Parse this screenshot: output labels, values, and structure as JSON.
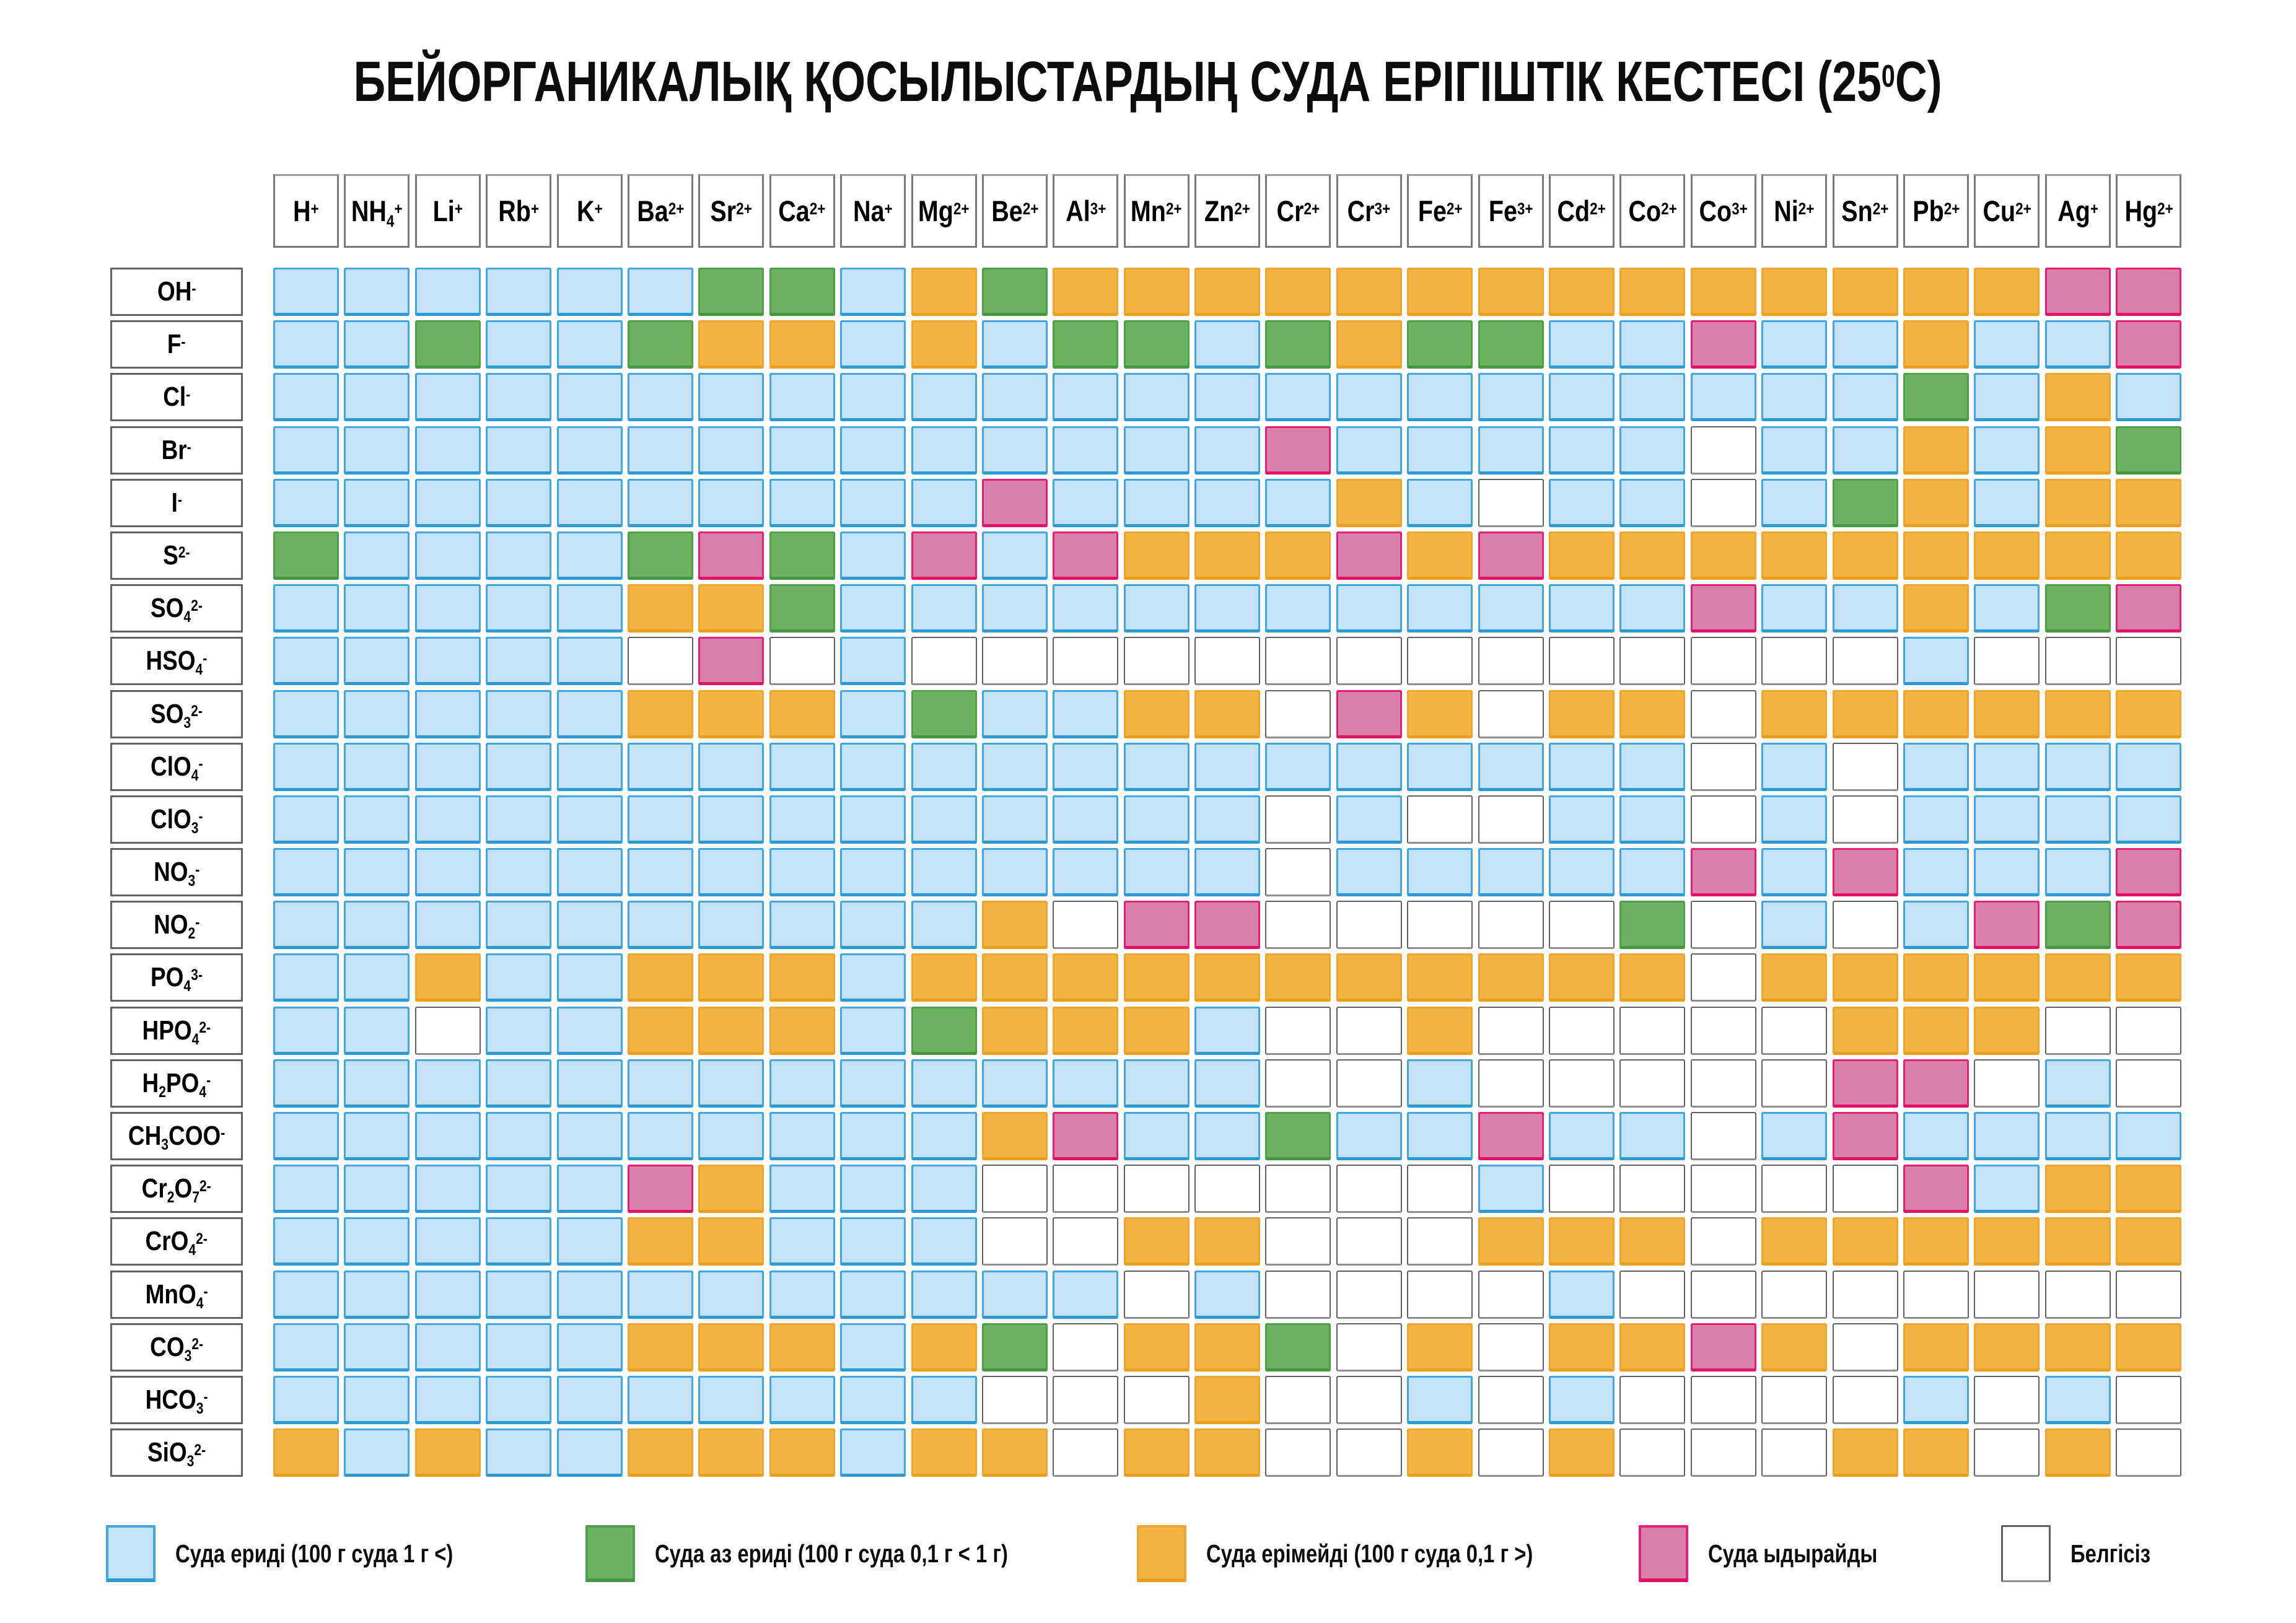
{
  "title": {
    "pre": "БЕЙОРГАНИКАЛЫҚ ҚОСЫЛЫСТАРДЫҢ СУДА ЕРІГІШТІК КЕСТЕСІ (25",
    "sup": "0",
    "post": "С)"
  },
  "chart_data": {
    "type": "table",
    "subtype": "solubility-matrix-heatmap",
    "title": "БЕЙОРГАНИКАЛЫҚ ҚОСЫЛЫСТАРДЫҢ СУДА ЕРІГІШТІК КЕСТЕСІ (25⁰С)",
    "columns": [
      {
        "id": "H+",
        "segments": [
          [
            "t",
            "H"
          ],
          [
            "p",
            "+"
          ]
        ]
      },
      {
        "id": "NH4+",
        "segments": [
          [
            "t",
            "NH"
          ],
          [
            "s",
            "4"
          ],
          [
            "p",
            "+"
          ]
        ]
      },
      {
        "id": "Li+",
        "segments": [
          [
            "t",
            "Li"
          ],
          [
            "p",
            "+"
          ]
        ]
      },
      {
        "id": "Rb+",
        "segments": [
          [
            "t",
            "Rb"
          ],
          [
            "p",
            "+"
          ]
        ]
      },
      {
        "id": "K+",
        "segments": [
          [
            "t",
            "K"
          ],
          [
            "p",
            "+"
          ]
        ]
      },
      {
        "id": "Ba2+",
        "segments": [
          [
            "t",
            "Ba"
          ],
          [
            "p",
            "2+"
          ]
        ]
      },
      {
        "id": "Sr2+",
        "segments": [
          [
            "t",
            "Sr"
          ],
          [
            "p",
            "2+"
          ]
        ]
      },
      {
        "id": "Ca2+",
        "segments": [
          [
            "t",
            "Ca"
          ],
          [
            "p",
            "2+"
          ]
        ]
      },
      {
        "id": "Na+",
        "segments": [
          [
            "t",
            "Na"
          ],
          [
            "p",
            "+"
          ]
        ]
      },
      {
        "id": "Mg2+",
        "segments": [
          [
            "t",
            "Mg"
          ],
          [
            "p",
            "2+"
          ]
        ]
      },
      {
        "id": "Be2+",
        "segments": [
          [
            "t",
            "Be"
          ],
          [
            "p",
            "2+"
          ]
        ]
      },
      {
        "id": "Al3+",
        "segments": [
          [
            "t",
            "Al"
          ],
          [
            "p",
            "3+"
          ]
        ]
      },
      {
        "id": "Mn2+",
        "segments": [
          [
            "t",
            "Mn"
          ],
          [
            "p",
            "2+"
          ]
        ]
      },
      {
        "id": "Zn2+",
        "segments": [
          [
            "t",
            "Zn"
          ],
          [
            "p",
            "2+"
          ]
        ]
      },
      {
        "id": "Cr2+",
        "segments": [
          [
            "t",
            "Cr"
          ],
          [
            "p",
            "2+"
          ]
        ]
      },
      {
        "id": "Cr3+",
        "segments": [
          [
            "t",
            "Cr"
          ],
          [
            "p",
            "3+"
          ]
        ]
      },
      {
        "id": "Fe2+",
        "segments": [
          [
            "t",
            "Fe"
          ],
          [
            "p",
            "2+"
          ]
        ]
      },
      {
        "id": "Fe3+",
        "segments": [
          [
            "t",
            "Fe"
          ],
          [
            "p",
            "3+"
          ]
        ]
      },
      {
        "id": "Cd2+",
        "segments": [
          [
            "t",
            "Cd"
          ],
          [
            "p",
            "2+"
          ]
        ]
      },
      {
        "id": "Co2+",
        "segments": [
          [
            "t",
            "Co"
          ],
          [
            "p",
            "2+"
          ]
        ]
      },
      {
        "id": "Co3+",
        "segments": [
          [
            "t",
            "Co"
          ],
          [
            "p",
            "3+"
          ]
        ]
      },
      {
        "id": "Ni2+",
        "segments": [
          [
            "t",
            "Ni"
          ],
          [
            "p",
            "2+"
          ]
        ]
      },
      {
        "id": "Sn2+",
        "segments": [
          [
            "t",
            "Sn"
          ],
          [
            "p",
            "2+"
          ]
        ]
      },
      {
        "id": "Pb2+",
        "segments": [
          [
            "t",
            "Pb"
          ],
          [
            "p",
            "2+"
          ]
        ]
      },
      {
        "id": "Cu2+",
        "segments": [
          [
            "t",
            "Cu"
          ],
          [
            "p",
            "2+"
          ]
        ]
      },
      {
        "id": "Ag+",
        "segments": [
          [
            "t",
            "Ag"
          ],
          [
            "p",
            "+"
          ]
        ]
      },
      {
        "id": "Hg2+",
        "segments": [
          [
            "t",
            "Hg"
          ],
          [
            "p",
            "2+"
          ]
        ]
      }
    ],
    "rows": [
      {
        "id": "OH-",
        "segments": [
          [
            "t",
            "OH"
          ],
          [
            "p",
            "-"
          ]
        ]
      },
      {
        "id": "F-",
        "segments": [
          [
            "t",
            "F"
          ],
          [
            "p",
            "-"
          ]
        ]
      },
      {
        "id": "Cl-",
        "segments": [
          [
            "t",
            "Cl"
          ],
          [
            "p",
            "-"
          ]
        ]
      },
      {
        "id": "Br-",
        "segments": [
          [
            "t",
            "Br"
          ],
          [
            "p",
            "-"
          ]
        ]
      },
      {
        "id": "I-",
        "segments": [
          [
            "t",
            "I"
          ],
          [
            "p",
            "-"
          ]
        ]
      },
      {
        "id": "S2-",
        "segments": [
          [
            "t",
            "S"
          ],
          [
            "p",
            "2-"
          ]
        ]
      },
      {
        "id": "SO42-",
        "segments": [
          [
            "t",
            "SO"
          ],
          [
            "s",
            "4"
          ],
          [
            "p",
            "2-"
          ]
        ]
      },
      {
        "id": "HSO4-",
        "segments": [
          [
            "t",
            "HSO"
          ],
          [
            "s",
            "4"
          ],
          [
            "p",
            "-"
          ]
        ]
      },
      {
        "id": "SO32-",
        "segments": [
          [
            "t",
            "SO"
          ],
          [
            "s",
            "3"
          ],
          [
            "p",
            "2-"
          ]
        ]
      },
      {
        "id": "ClO4-",
        "segments": [
          [
            "t",
            "ClO"
          ],
          [
            "s",
            "4"
          ],
          [
            "p",
            "-"
          ]
        ]
      },
      {
        "id": "ClO3-",
        "segments": [
          [
            "t",
            "ClO"
          ],
          [
            "s",
            "3"
          ],
          [
            "p",
            "-"
          ]
        ]
      },
      {
        "id": "NO3-",
        "segments": [
          [
            "t",
            "NO"
          ],
          [
            "s",
            "3"
          ],
          [
            "p",
            "-"
          ]
        ]
      },
      {
        "id": "NO2-",
        "segments": [
          [
            "t",
            "NO"
          ],
          [
            "s",
            "2"
          ],
          [
            "p",
            "-"
          ]
        ]
      },
      {
        "id": "PO43-",
        "segments": [
          [
            "t",
            "PO"
          ],
          [
            "s",
            "4"
          ],
          [
            "p",
            "3-"
          ]
        ]
      },
      {
        "id": "HPO42-",
        "segments": [
          [
            "t",
            "HPO"
          ],
          [
            "s",
            "4"
          ],
          [
            "p",
            "2-"
          ]
        ]
      },
      {
        "id": "H2PO4-",
        "segments": [
          [
            "t",
            "H"
          ],
          [
            "s",
            "2"
          ],
          [
            "t",
            "PO"
          ],
          [
            "s",
            "4"
          ],
          [
            "p",
            "-"
          ]
        ]
      },
      {
        "id": "CH3COO-",
        "segments": [
          [
            "t",
            "CH"
          ],
          [
            "s",
            "3"
          ],
          [
            "t",
            "COO"
          ],
          [
            "p",
            "-"
          ]
        ]
      },
      {
        "id": "Cr2O72-",
        "segments": [
          [
            "t",
            "Cr"
          ],
          [
            "s",
            "2"
          ],
          [
            "t",
            "O"
          ],
          [
            "s",
            "7"
          ],
          [
            "p",
            "2-"
          ]
        ]
      },
      {
        "id": "CrO42-",
        "segments": [
          [
            "t",
            "CrO"
          ],
          [
            "s",
            "4"
          ],
          [
            "p",
            "2-"
          ]
        ]
      },
      {
        "id": "MnO4-",
        "segments": [
          [
            "t",
            "MnO"
          ],
          [
            "s",
            "4"
          ],
          [
            "p",
            "-"
          ]
        ]
      },
      {
        "id": "CO32-",
        "segments": [
          [
            "t",
            "CO"
          ],
          [
            "s",
            "3"
          ],
          [
            "p",
            "2-"
          ]
        ]
      },
      {
        "id": "HCO3-",
        "segments": [
          [
            "t",
            "HCO"
          ],
          [
            "s",
            "3"
          ],
          [
            "p",
            "-"
          ]
        ]
      },
      {
        "id": "SiO32-",
        "segments": [
          [
            "t",
            "SiO"
          ],
          [
            "s",
            "3"
          ],
          [
            "p",
            "2-"
          ]
        ]
      }
    ],
    "values": [
      "BBBBBBGGBOGOOOOOOOOOOOOOOPP",
      "BBGBBGOOBOBGGBGOGGBBPBBOBBP",
      "BBBBBBBBBBBBBBBBBBBBBBBGBOB",
      "BBBBBBBBBBBBBBPBBBBBWBBOBOG",
      "BBBBBBBBBBPBBBBOBWBBWBGOBOO",
      "GBBBBGPGBPBPOOOPOPOOOOOOOOO",
      "BBBBBOOGBBBBBBBBBBBBPBBOBGP",
      "BBBBBWPWBWWWWWWWWWWWWWWBWWW",
      "BBBBBOOOBGBBOOWPOWOOWOOOOOO",
      "BBBBBBBBBBBBBBBBBBBBWBWBBBB",
      "BBBBBBBBBBBBBBWBWWBBWBWBBBB",
      "BBBBBBBBBBBBBBWBBBBBPBPBBBP",
      "BBBBBBBBBBOWPPWWWWWGWBWBPGP",
      "BBOBBOOOBOOOOOOOOOOOWOOOOOO",
      "BBWBBOOOBGOOOBWWOWWWWWOOOWW",
      "BBBBBBBBBBBBBBWWBWWWWWPPWBW",
      "BBBBBBBBBBOPBBGBBPBBWBPBBBB",
      "BBBBBPOBBBWWWWWWWBWWWWWPBOO",
      "BBBBBOOBBBWWOOWWWOOOWOOOOOO",
      "BBBBBBBBBBBBWBWWWWBWWWWWWWW",
      "BBBBBOOOBOGWOOGWOWOOPOWOOOO",
      "BBBBBBBBBBWWWOWWBWBWWWWBWBW",
      "OBOBBOOOBOOWOOWWOWOWWWOOWOW"
    ],
    "codes": {
      "B": "soluble",
      "G": "slightly-soluble",
      "O": "insoluble",
      "P": "decomposes",
      "W": "unknown"
    },
    "colors": {
      "B": {
        "fill": "#C5E2F5",
        "border": "#41A7DE",
        "edge": "#2D9AD6"
      },
      "G": {
        "fill": "#6DB25F",
        "border": "#4FA04A",
        "edge": "#459740"
      },
      "O": {
        "fill": "#F1B443",
        "border": "#EFA630",
        "edge": "#EC9E1E"
      },
      "P": {
        "fill": "#D981A9",
        "border": "#E32078",
        "edge": "#E01167"
      },
      "W": {
        "fill": "#FFFFFF",
        "border": "#606060",
        "edge": "#8F8F8F"
      }
    },
    "legend": [
      {
        "key": "B",
        "label": "Суда ериді (100 г суда 1 г <)"
      },
      {
        "key": "G",
        "label": "Суда аз ериді (100 г суда 0,1 г < 1 г)"
      },
      {
        "key": "O",
        "label": "Суда ерімейді (100 г суда 0,1 г >)"
      },
      {
        "key": "P",
        "label": "Суда ыдырайды"
      },
      {
        "key": "W",
        "label": "Белгісіз"
      }
    ],
    "layout_hints": {
      "legend_position": "bottom",
      "grid": "off",
      "cell_matrix_size": "23x27"
    }
  }
}
